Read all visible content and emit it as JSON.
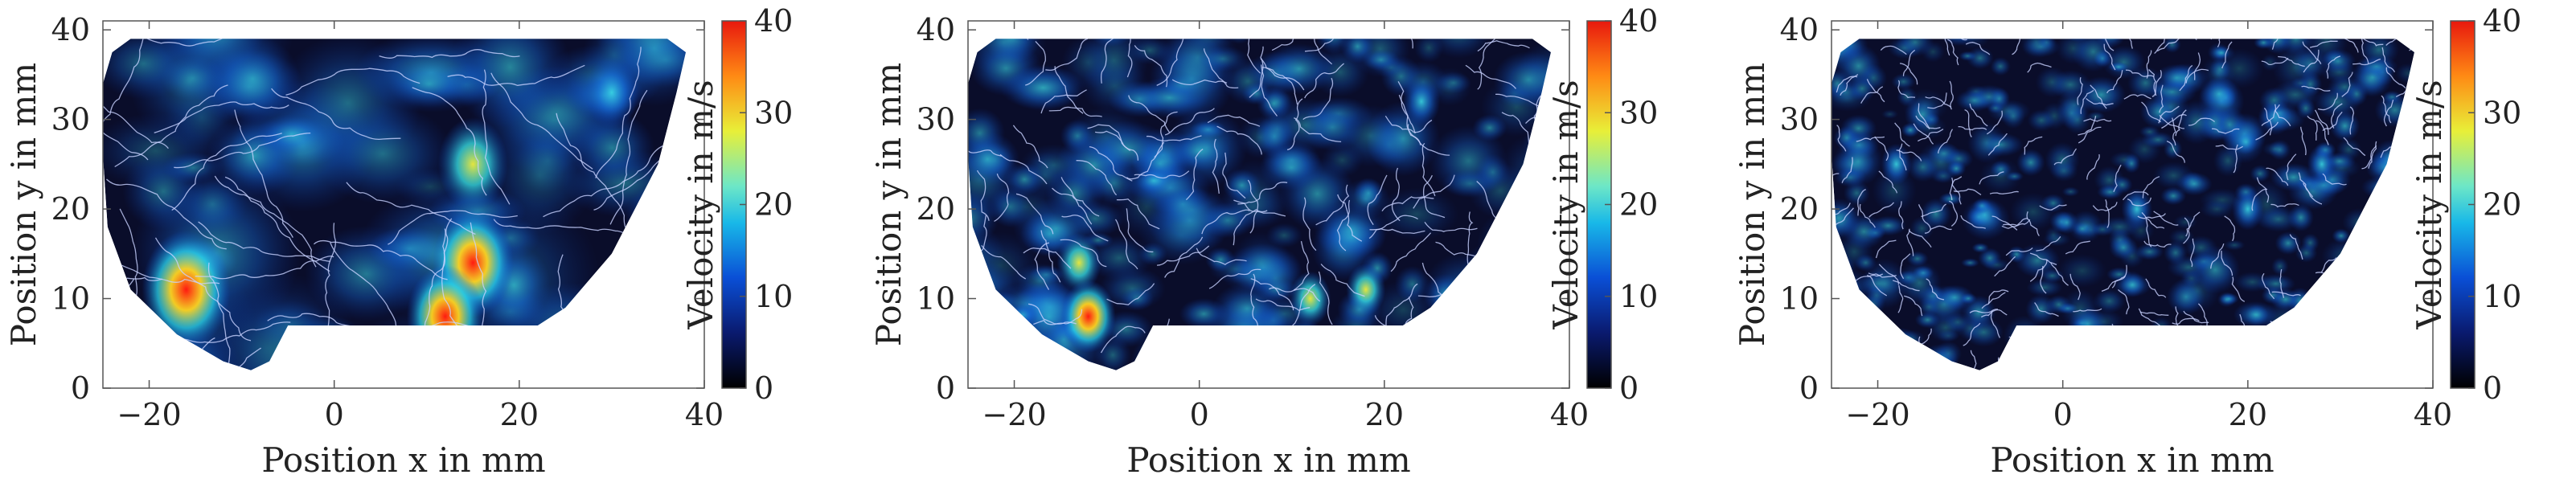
{
  "chart_data": [
    {
      "type": "heatmap",
      "field_type": "velocity magnitude with streamlines",
      "title": "",
      "xlabel": "Position x in mm",
      "ylabel": "Position y in mm",
      "xlim": [
        -25,
        40
      ],
      "ylim": [
        0,
        41
      ],
      "xticks": [
        -20,
        0,
        20,
        40
      ],
      "yticks": [
        0,
        10,
        20,
        30,
        40
      ],
      "colorbar": {
        "label": "Velocity in m/s",
        "min": 0,
        "max": 40,
        "ticks": [
          0,
          10,
          20,
          30,
          40
        ],
        "colormap": "jet-dark"
      },
      "hotspots": [
        {
          "x": -16,
          "y": 11,
          "velocity": 38
        },
        {
          "x": 15,
          "y": 14,
          "velocity": 33
        },
        {
          "x": 12,
          "y": 8,
          "velocity": 30
        },
        {
          "x": 15,
          "y": 25,
          "velocity": 25
        },
        {
          "x": 30,
          "y": 33,
          "velocity": 14
        }
      ],
      "streamline_density": "coarse"
    },
    {
      "type": "heatmap",
      "field_type": "velocity magnitude with streamlines",
      "title": "",
      "xlabel": "Position x in mm",
      "ylabel": "Position y in mm",
      "xlim": [
        -25,
        40
      ],
      "ylim": [
        0,
        41
      ],
      "xticks": [
        -20,
        0,
        20,
        40
      ],
      "yticks": [
        0,
        10,
        20,
        30,
        40
      ],
      "colorbar": {
        "label": "Velocity in m/s",
        "min": 0,
        "max": 40,
        "ticks": [
          0,
          10,
          20,
          30,
          40
        ],
        "colormap": "jet-dark"
      },
      "hotspots": [
        {
          "x": -12,
          "y": 8,
          "velocity": 36
        },
        {
          "x": -13,
          "y": 14,
          "velocity": 24
        },
        {
          "x": 12,
          "y": 10,
          "velocity": 20
        },
        {
          "x": 18,
          "y": 11,
          "velocity": 18
        },
        {
          "x": 24,
          "y": 32,
          "velocity": 16
        }
      ],
      "streamline_density": "medium"
    },
    {
      "type": "heatmap",
      "field_type": "velocity magnitude with streamlines",
      "title": "",
      "xlabel": "Position x in mm",
      "ylabel": "Position y in mm",
      "xlim": [
        -25,
        40
      ],
      "ylim": [
        0,
        41
      ],
      "xticks": [
        -20,
        0,
        20,
        40
      ],
      "yticks": [
        0,
        10,
        20,
        30,
        40
      ],
      "colorbar": {
        "label": "Velocity in m/s",
        "min": 0,
        "max": 40,
        "ticks": [
          0,
          10,
          20,
          30,
          40
        ],
        "colormap": "jet-dark"
      },
      "hotspots": [
        {
          "x": -18,
          "y": 25,
          "velocity": 14
        },
        {
          "x": 8,
          "y": 20,
          "velocity": 14
        },
        {
          "x": 20,
          "y": 20,
          "velocity": 15
        },
        {
          "x": 28,
          "y": 25,
          "velocity": 12
        }
      ],
      "streamline_density": "fine"
    }
  ],
  "colors": {
    "field_dark": "#0a0d2a",
    "streamline": "#c8d2ff",
    "axis": "#555555",
    "text": "#222222"
  }
}
